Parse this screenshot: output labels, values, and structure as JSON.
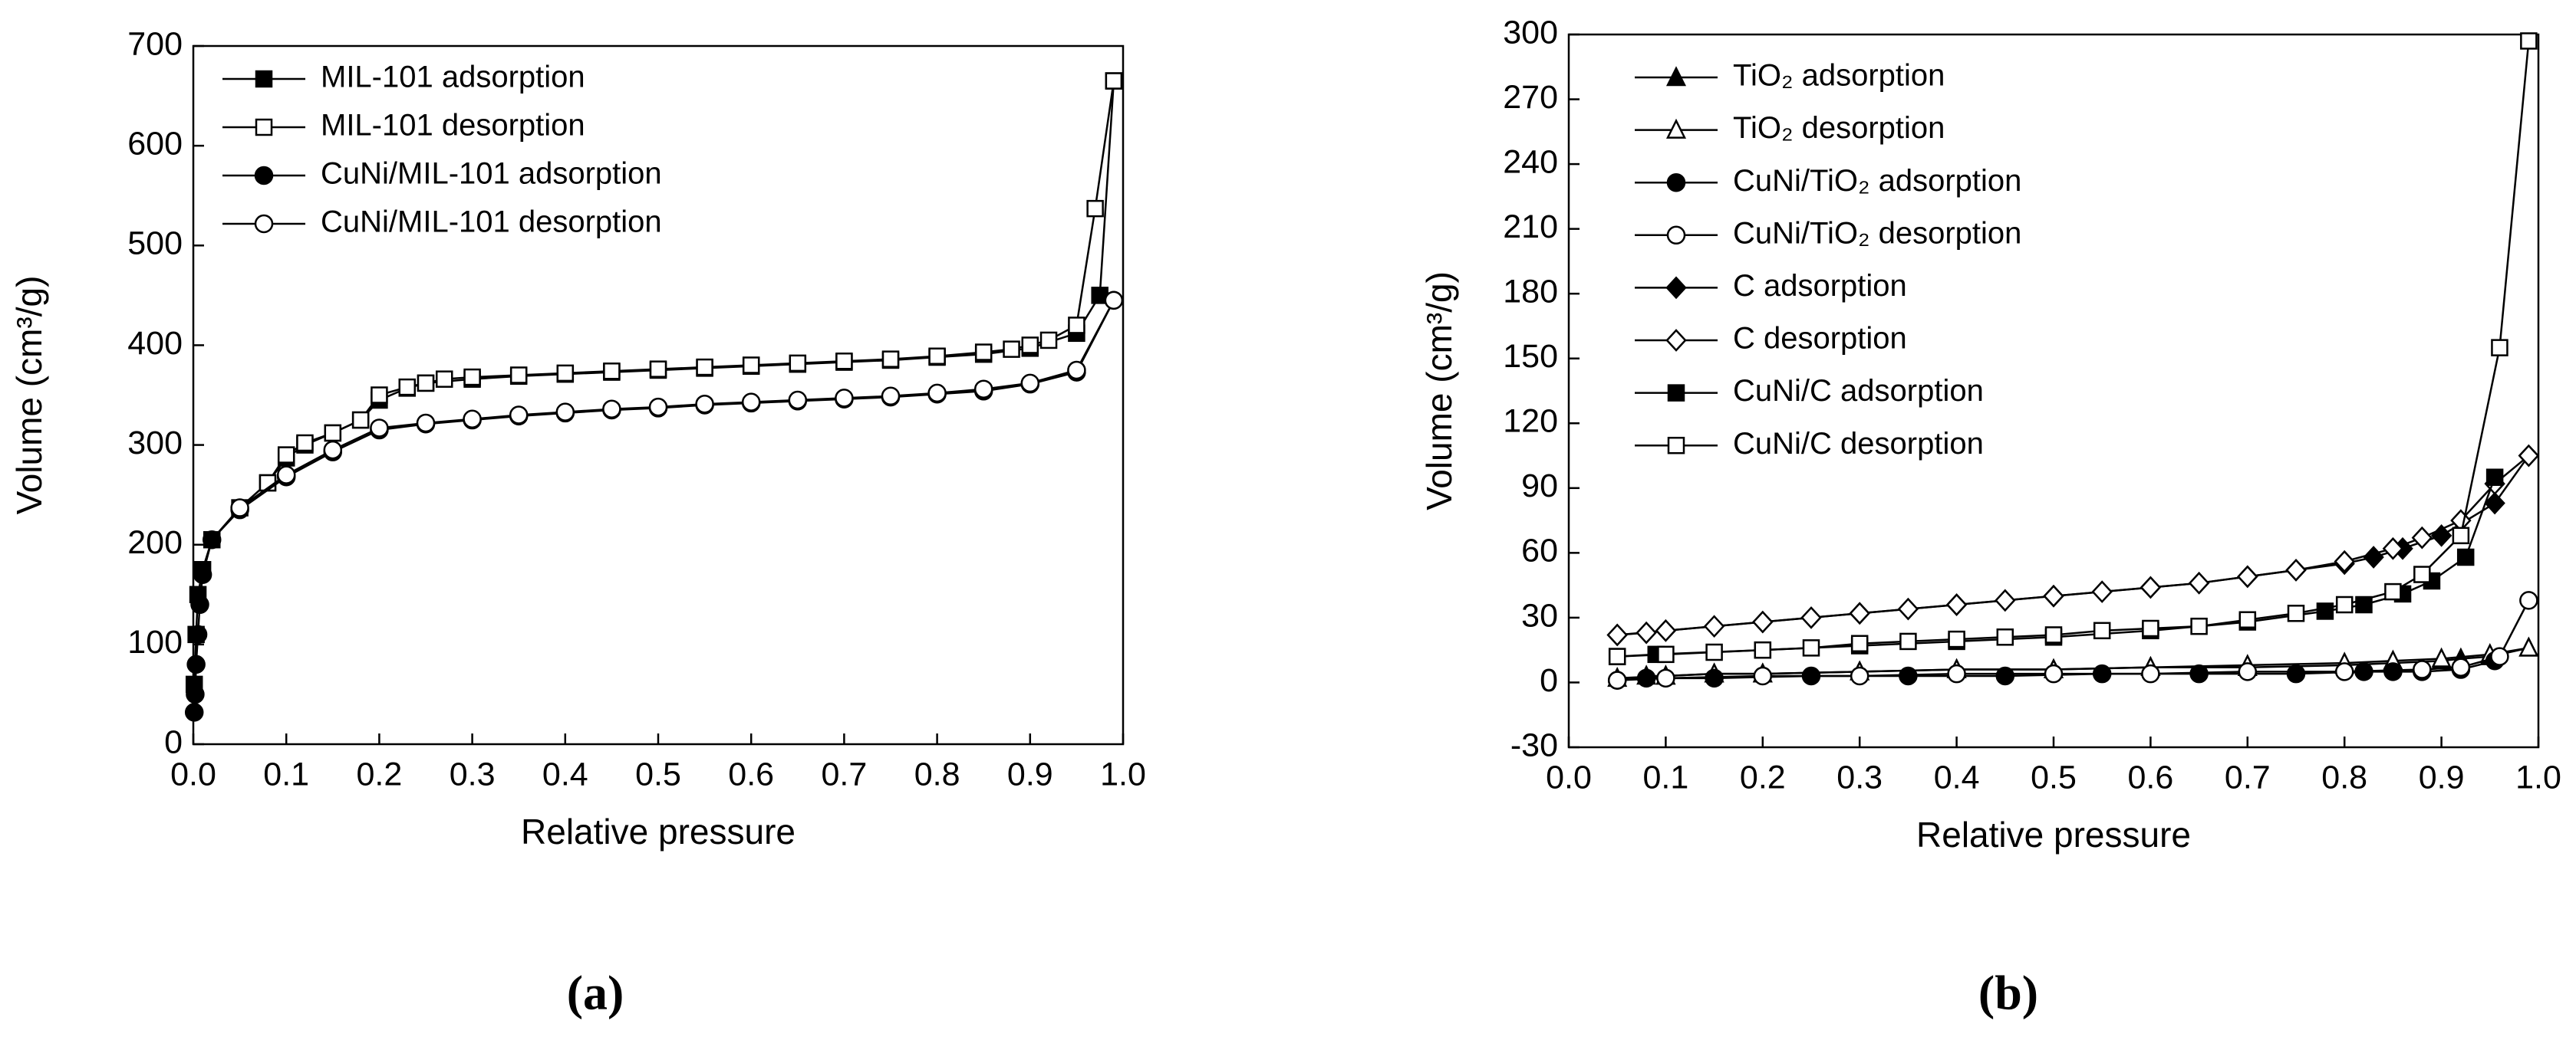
{
  "chart_data": [
    {
      "type": "line",
      "panel_label": "(a)",
      "x_label": "Relative pressure",
      "y_label": "Volume (cm³/g)",
      "xlim": [
        0,
        1
      ],
      "ylim": [
        0,
        700
      ],
      "xticks": [
        {
          "value": 0,
          "label": "0.0"
        },
        0.1,
        0.2,
        0.3,
        0.4,
        0.5,
        0.6,
        0.7,
        0.8,
        0.9,
        {
          "value": 1,
          "label": "1.0"
        }
      ],
      "yticks": [
        0,
        100,
        200,
        300,
        400,
        500,
        600,
        700
      ],
      "series": [
        {
          "name": "MIL-101 adsorption",
          "color": "#000000",
          "marker": "square",
          "filled": true,
          "x": [
            0.001,
            0.003,
            0.005,
            0.01,
            0.02,
            0.05,
            0.08,
            0.1,
            0.12,
            0.15,
            0.18,
            0.2,
            0.23,
            0.25,
            0.3,
            0.35,
            0.4,
            0.45,
            0.5,
            0.55,
            0.6,
            0.65,
            0.7,
            0.75,
            0.8,
            0.85,
            0.9,
            0.95,
            0.975,
            0.99
          ],
          "values": [
            60,
            110,
            150,
            175,
            205,
            237,
            262,
            287,
            300,
            312,
            325,
            345,
            357,
            362,
            366,
            369,
            371,
            373,
            375,
            377,
            379,
            381,
            383,
            385,
            388,
            391,
            397,
            412,
            450,
            665
          ]
        },
        {
          "name": "MIL-101 desorption",
          "color": "#000000",
          "marker": "square",
          "filled": false,
          "x": [
            0.99,
            0.97,
            0.95,
            0.92,
            0.9,
            0.88,
            0.85,
            0.8,
            0.75,
            0.7,
            0.65,
            0.6,
            0.55,
            0.5,
            0.45,
            0.4,
            0.35,
            0.3,
            0.27,
            0.25,
            0.23,
            0.2,
            0.18,
            0.15,
            0.12,
            0.1,
            0.08
          ],
          "values": [
            665,
            537,
            420,
            405,
            400,
            396,
            393,
            389,
            386,
            384,
            382,
            380,
            378,
            376,
            374,
            372,
            370,
            368,
            366,
            362,
            358,
            350,
            325,
            312,
            302,
            290,
            262
          ]
        },
        {
          "name": "CuNi/MIL-101 adsorption",
          "color": "#000000",
          "marker": "circle",
          "filled": true,
          "x": [
            0.001,
            0.002,
            0.003,
            0.005,
            0.007,
            0.01,
            0.02,
            0.05,
            0.1,
            0.15,
            0.2,
            0.25,
            0.3,
            0.35,
            0.4,
            0.45,
            0.5,
            0.55,
            0.6,
            0.65,
            0.7,
            0.75,
            0.8,
            0.85,
            0.9,
            0.95,
            0.99
          ],
          "values": [
            32,
            50,
            80,
            110,
            140,
            170,
            205,
            235,
            268,
            293,
            315,
            321,
            325,
            329,
            332,
            335,
            337,
            340,
            342,
            344,
            346,
            348,
            351,
            354,
            361,
            373,
            445
          ]
        },
        {
          "name": "CuNi/MIL-101 desorption",
          "color": "#000000",
          "marker": "circle",
          "filled": false,
          "x": [
            0.99,
            0.95,
            0.9,
            0.85,
            0.8,
            0.75,
            0.7,
            0.65,
            0.6,
            0.55,
            0.5,
            0.45,
            0.4,
            0.35,
            0.3,
            0.25,
            0.2,
            0.15,
            0.1,
            0.05
          ],
          "values": [
            445,
            375,
            362,
            356,
            352,
            349,
            347,
            345,
            343,
            341,
            338,
            336,
            333,
            330,
            326,
            322,
            317,
            295,
            270,
            237
          ]
        }
      ]
    },
    {
      "type": "line",
      "panel_label": "(b)",
      "x_label": "Relative pressure",
      "y_label": "Volume (cm³/g)",
      "xlim": [
        0,
        1
      ],
      "ylim": [
        -30,
        300
      ],
      "xticks": [
        {
          "value": 0,
          "label": "0.0"
        },
        0.1,
        0.2,
        0.3,
        0.4,
        0.5,
        0.6,
        0.7,
        0.8,
        0.9,
        {
          "value": 1,
          "label": "1.0"
        }
      ],
      "yticks": [
        -30,
        0,
        30,
        60,
        90,
        120,
        150,
        180,
        210,
        240,
        270,
        300
      ],
      "series": [
        {
          "name": "TiO₂ adsorption",
          "color": "#000000",
          "marker": "triangle",
          "filled": true,
          "x": [
            0.05,
            0.1,
            0.15,
            0.2,
            0.3,
            0.4,
            0.5,
            0.6,
            0.7,
            0.8,
            0.85,
            0.9,
            0.92,
            0.95,
            0.99
          ],
          "values": [
            2,
            3,
            4,
            4,
            5,
            6,
            6,
            7,
            7,
            8,
            9,
            10,
            11,
            12,
            16
          ]
        },
        {
          "name": "TiO₂ desorption",
          "color": "#000000",
          "marker": "triangle",
          "filled": false,
          "x": [
            0.99,
            0.95,
            0.9,
            0.85,
            0.8,
            0.7,
            0.6,
            0.5,
            0.4,
            0.3,
            0.2,
            0.15,
            0.1,
            0.08
          ],
          "values": [
            16,
            13,
            11,
            10,
            9,
            8,
            7,
            6,
            6,
            5,
            4,
            4,
            3,
            3
          ]
        },
        {
          "name": "CuNi/TiO₂ adsorption",
          "color": "#000000",
          "marker": "circle",
          "filled": true,
          "x": [
            0.05,
            0.08,
            0.15,
            0.25,
            0.35,
            0.45,
            0.55,
            0.65,
            0.75,
            0.82,
            0.85,
            0.88,
            0.92,
            0.955
          ],
          "values": [
            1,
            2,
            2,
            3,
            3,
            3,
            4,
            4,
            4,
            5,
            5,
            5,
            6,
            10
          ]
        },
        {
          "name": "CuNi/TiO₂ desorption",
          "color": "#000000",
          "marker": "circle",
          "filled": false,
          "x": [
            0.99,
            0.96,
            0.92,
            0.88,
            0.8,
            0.7,
            0.6,
            0.5,
            0.4,
            0.3,
            0.2,
            0.1,
            0.05
          ],
          "values": [
            38,
            12,
            7,
            6,
            5,
            5,
            4,
            4,
            4,
            3,
            3,
            2,
            1
          ]
        },
        {
          "name": "C adsorption",
          "color": "#000000",
          "marker": "diamond",
          "filled": true,
          "x": [
            0.05,
            0.1,
            0.2,
            0.3,
            0.4,
            0.5,
            0.6,
            0.65,
            0.7,
            0.75,
            0.8,
            0.83,
            0.86,
            0.9,
            0.955,
            0.99
          ],
          "values": [
            22,
            24,
            28,
            32,
            36,
            40,
            44,
            46,
            49,
            52,
            55,
            58,
            62,
            68,
            83,
            105
          ]
        },
        {
          "name": "C desorption",
          "color": "#000000",
          "marker": "diamond",
          "filled": false,
          "x": [
            0.99,
            0.955,
            0.92,
            0.88,
            0.85,
            0.8,
            0.75,
            0.7,
            0.65,
            0.6,
            0.55,
            0.5,
            0.45,
            0.4,
            0.35,
            0.3,
            0.25,
            0.2,
            0.15,
            0.1,
            0.08,
            0.05
          ],
          "values": [
            105,
            92,
            75,
            67,
            62,
            56,
            52,
            49,
            46,
            44,
            42,
            40,
            38,
            36,
            34,
            32,
            30,
            28,
            26,
            24,
            23,
            22
          ]
        },
        {
          "name": "CuNi/C adsorption",
          "color": "#000000",
          "marker": "square",
          "filled": true,
          "x": [
            0.05,
            0.09,
            0.2,
            0.3,
            0.4,
            0.5,
            0.6,
            0.7,
            0.78,
            0.82,
            0.86,
            0.89,
            0.925,
            0.955
          ],
          "values": [
            12,
            13,
            15,
            17,
            19,
            21,
            24,
            28,
            33,
            36,
            41,
            47,
            58,
            95
          ]
        },
        {
          "name": "CuNi/C desorption",
          "color": "#000000",
          "marker": "square",
          "filled": false,
          "x": [
            0.99,
            0.96,
            0.92,
            0.88,
            0.85,
            0.8,
            0.75,
            0.7,
            0.65,
            0.6,
            0.55,
            0.5,
            0.45,
            0.4,
            0.35,
            0.3,
            0.25,
            0.2,
            0.15,
            0.1,
            0.05
          ],
          "values": [
            297,
            155,
            68,
            50,
            42,
            36,
            32,
            29,
            26,
            25,
            24,
            22,
            21,
            20,
            19,
            18,
            16,
            15,
            14,
            13,
            12
          ]
        }
      ]
    }
  ]
}
